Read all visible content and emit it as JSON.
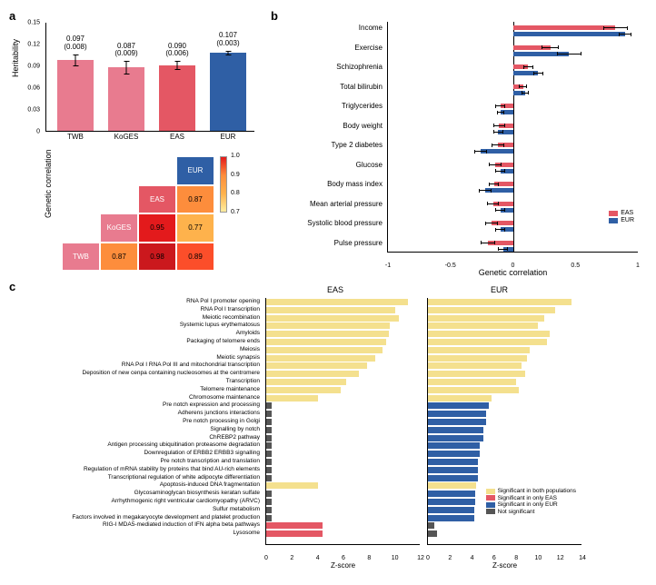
{
  "panel_a": {
    "label": "a",
    "ylabel": "Heritability",
    "ylim": [
      0,
      0.15
    ],
    "yticks": [
      0,
      0.03,
      0.06,
      0.09,
      0.12,
      0.15
    ],
    "bars": [
      {
        "name": "TWB",
        "value": 0.097,
        "se": 0.008,
        "color": "#e87b8f"
      },
      {
        "name": "KoGES",
        "value": 0.087,
        "se": 0.009,
        "color": "#e87b8f"
      },
      {
        "name": "EAS",
        "value": 0.09,
        "se": 0.006,
        "color": "#e45764"
      },
      {
        "name": "EUR",
        "value": 0.107,
        "se": 0.003,
        "color": "#2f5fa5"
      }
    ],
    "heatmap": {
      "ylabel": "Genetic correlation",
      "labels": [
        "TWB",
        "KoGES",
        "EAS",
        "EUR"
      ],
      "diag_colors": [
        "#e87b8f",
        "#e87b8f",
        "#e45764",
        "#2f5fa5"
      ],
      "cells": [
        [
          null,
          null,
          null,
          {
            "v": "EUR",
            "diag": 3
          }
        ],
        [
          null,
          null,
          {
            "v": "EAS",
            "diag": 2
          },
          {
            "v": "0.87",
            "c": "#fd8d3c"
          }
        ],
        [
          null,
          {
            "v": "KoGES",
            "diag": 1
          },
          {
            "v": "0.95",
            "c": "#e31a1c"
          },
          {
            "v": "0.77",
            "c": "#feb24c"
          }
        ],
        [
          {
            "v": "TWB",
            "diag": 0
          },
          {
            "v": "0.87",
            "c": "#fd8d3c"
          },
          {
            "v": "0.98",
            "c": "#cb181d"
          },
          {
            "v": "0.89",
            "c": "#fc4e2a"
          }
        ]
      ],
      "colorbar": {
        "min": 0.7,
        "max": 1.0,
        "ticks": [
          0.7,
          0.8,
          0.9,
          1.0
        ]
      }
    }
  },
  "panel_b": {
    "label": "b",
    "xlabel": "Genetic correlation",
    "xlim": [
      -1.0,
      1.0
    ],
    "xticks": [
      -1.0,
      -0.5,
      0,
      0.5,
      1.0
    ],
    "colors": {
      "EAS": "#e45764",
      "EUR": "#2f5fa5"
    },
    "legend": [
      "EAS",
      "EUR"
    ],
    "items": [
      {
        "label": "Income",
        "EAS": 0.82,
        "EAS_se": 0.1,
        "EUR": 0.9,
        "EUR_se": 0.05
      },
      {
        "label": "Exercise",
        "EAS": 0.3,
        "EAS_se": 0.07,
        "EUR": 0.45,
        "EUR_se": 0.1
      },
      {
        "label": "Schizophrenia",
        "EAS": 0.12,
        "EAS_se": 0.04,
        "EUR": 0.2,
        "EUR_se": 0.04
      },
      {
        "label": "Total bilirubin",
        "EAS": 0.08,
        "EAS_se": 0.03,
        "EUR": 0.1,
        "EUR_se": 0.03
      },
      {
        "label": "Triglycerides",
        "EAS": -0.1,
        "EAS_se": 0.04,
        "EUR": -0.1,
        "EUR_se": 0.03
      },
      {
        "label": "Body weight",
        "EAS": -0.11,
        "EAS_se": 0.05,
        "EUR": -0.12,
        "EUR_se": 0.04
      },
      {
        "label": "Type 2 diabetes",
        "EAS": -0.12,
        "EAS_se": 0.05,
        "EUR": -0.26,
        "EUR_se": 0.05
      },
      {
        "label": "Glucose",
        "EAS": -0.14,
        "EAS_se": 0.05,
        "EUR": -0.1,
        "EUR_se": 0.04
      },
      {
        "label": "Body mass index",
        "EAS": -0.15,
        "EAS_se": 0.04,
        "EUR": -0.22,
        "EUR_se": 0.05
      },
      {
        "label": "Mean arterial pressure",
        "EAS": -0.16,
        "EAS_se": 0.05,
        "EUR": -0.1,
        "EUR_se": 0.04
      },
      {
        "label": "Systolic blood pressure",
        "EAS": -0.17,
        "EAS_se": 0.05,
        "EUR": -0.1,
        "EUR_se": 0.04
      },
      {
        "label": "Pulse pressure",
        "EAS": -0.2,
        "EAS_se": 0.06,
        "EUR": -0.08,
        "EUR_se": 0.04
      }
    ]
  },
  "panel_c": {
    "label": "c",
    "xlabel": "Z-score",
    "eas_title": "EAS",
    "eur_title": "EUR",
    "eas_xlim": [
      0,
      12
    ],
    "eas_xticks": [
      0,
      2,
      4,
      6,
      8,
      10,
      12
    ],
    "eur_xlim": [
      0,
      14
    ],
    "eur_xticks": [
      0,
      2,
      4,
      6,
      8,
      10,
      12,
      14
    ],
    "legend": [
      {
        "label": "Significant in both populations",
        "color": "#f4e08e"
      },
      {
        "label": "Significant in only EAS",
        "color": "#e45764"
      },
      {
        "label": "Significant in only EUR",
        "color": "#2f5fa5"
      },
      {
        "label": "Not significant",
        "color": "#555555"
      }
    ],
    "items": [
      {
        "label": "RNA Pol I promoter opening",
        "eas": 11.0,
        "eas_c": "#f4e08e",
        "eur": 13.0,
        "eur_c": "#f4e08e"
      },
      {
        "label": "RNA Pol I transcription",
        "eas": 10.0,
        "eas_c": "#f4e08e",
        "eur": 11.5,
        "eur_c": "#f4e08e"
      },
      {
        "label": "Meiotic recombination",
        "eas": 10.3,
        "eas_c": "#f4e08e",
        "eur": 10.5,
        "eur_c": "#f4e08e"
      },
      {
        "label": "Systemic lupus erythematosus",
        "eas": 9.6,
        "eas_c": "#f4e08e",
        "eur": 10.0,
        "eur_c": "#f4e08e"
      },
      {
        "label": "Amyloids",
        "eas": 9.5,
        "eas_c": "#f4e08e",
        "eur": 11.0,
        "eur_c": "#f4e08e"
      },
      {
        "label": "Packaging of telomere ends",
        "eas": 9.3,
        "eas_c": "#f4e08e",
        "eur": 10.8,
        "eur_c": "#f4e08e"
      },
      {
        "label": "Meiosis",
        "eas": 9.0,
        "eas_c": "#f4e08e",
        "eur": 9.2,
        "eur_c": "#f4e08e"
      },
      {
        "label": "Meiotic synapsis",
        "eas": 8.5,
        "eas_c": "#f4e08e",
        "eur": 9.0,
        "eur_c": "#f4e08e"
      },
      {
        "label": "RNA Pol I RNA Pol III and mitochondrial transcription",
        "eas": 7.8,
        "eas_c": "#f4e08e",
        "eur": 8.5,
        "eur_c": "#f4e08e"
      },
      {
        "label": "Deposition of new cenpa containing nucleosomes at the centromere",
        "eas": 7.2,
        "eas_c": "#f4e08e",
        "eur": 8.8,
        "eur_c": "#f4e08e"
      },
      {
        "label": "Transcription",
        "eas": 6.2,
        "eas_c": "#f4e08e",
        "eur": 8.0,
        "eur_c": "#f4e08e"
      },
      {
        "label": "Telomere maintenance",
        "eas": 5.8,
        "eas_c": "#f4e08e",
        "eur": 8.2,
        "eur_c": "#f4e08e"
      },
      {
        "label": "Chromosome maintenance",
        "eas": 4.0,
        "eas_c": "#f4e08e",
        "eur": 5.8,
        "eur_c": "#f4e08e"
      },
      {
        "label": "Pre notch expression and processing",
        "eas": 0.4,
        "eas_c": "#555555",
        "eur": 5.5,
        "eur_c": "#2f5fa5"
      },
      {
        "label": "Adherens junctions interactions",
        "eas": 0.4,
        "eas_c": "#555555",
        "eur": 5.3,
        "eur_c": "#2f5fa5"
      },
      {
        "label": "Pre notch processing in Golgi",
        "eas": 0.4,
        "eas_c": "#555555",
        "eur": 5.3,
        "eur_c": "#2f5fa5"
      },
      {
        "label": "Signalling by notch",
        "eas": 0.4,
        "eas_c": "#555555",
        "eur": 5.0,
        "eur_c": "#2f5fa5"
      },
      {
        "label": "ChREBP2 pathway",
        "eas": 0.4,
        "eas_c": "#555555",
        "eur": 5.0,
        "eur_c": "#2f5fa5"
      },
      {
        "label": "Antigen processing ubiquitination proteasome degradation",
        "eas": 0.4,
        "eas_c": "#555555",
        "eur": 4.7,
        "eur_c": "#2f5fa5"
      },
      {
        "label": "Downregulation of ERBB2 ERBB3 signalling",
        "eas": 0.4,
        "eas_c": "#555555",
        "eur": 4.7,
        "eur_c": "#2f5fa5"
      },
      {
        "label": "Pre notch transcription and translation",
        "eas": 0.4,
        "eas_c": "#555555",
        "eur": 4.5,
        "eur_c": "#2f5fa5"
      },
      {
        "label": "Regulation of mRNA stability by proteins that bind AU-rich elements",
        "eas": 0.4,
        "eas_c": "#555555",
        "eur": 4.5,
        "eur_c": "#2f5fa5"
      },
      {
        "label": "Transcriptional regulation of white adipocyte differentiation",
        "eas": 0.4,
        "eas_c": "#555555",
        "eur": 4.5,
        "eur_c": "#2f5fa5"
      },
      {
        "label": "Apoptosis-induced DNA fragmentation",
        "eas": 4.0,
        "eas_c": "#f4e08e",
        "eur": 4.4,
        "eur_c": "#f4e08e"
      },
      {
        "label": "Glycosaminoglycan biosynthesis keratan sulfate",
        "eas": 0.4,
        "eas_c": "#555555",
        "eur": 4.3,
        "eur_c": "#2f5fa5"
      },
      {
        "label": "Arrhythmogenic right ventricular cardiomyopathy (ARVC)",
        "eas": 0.4,
        "eas_c": "#555555",
        "eur": 4.3,
        "eur_c": "#2f5fa5"
      },
      {
        "label": "Sulfur metabolism",
        "eas": 0.4,
        "eas_c": "#555555",
        "eur": 4.2,
        "eur_c": "#2f5fa5"
      },
      {
        "label": "Factors involved in megakaryocyte development and platelet production",
        "eas": 0.4,
        "eas_c": "#555555",
        "eur": 4.2,
        "eur_c": "#2f5fa5"
      },
      {
        "label": "RIG-I MDA5-mediated induction of IFN alpha beta pathways",
        "eas": 4.4,
        "eas_c": "#e45764",
        "eur": 0.6,
        "eur_c": "#555555"
      },
      {
        "label": "Lysosome",
        "eas": 4.4,
        "eas_c": "#e45764",
        "eur": 0.8,
        "eur_c": "#555555"
      }
    ]
  }
}
